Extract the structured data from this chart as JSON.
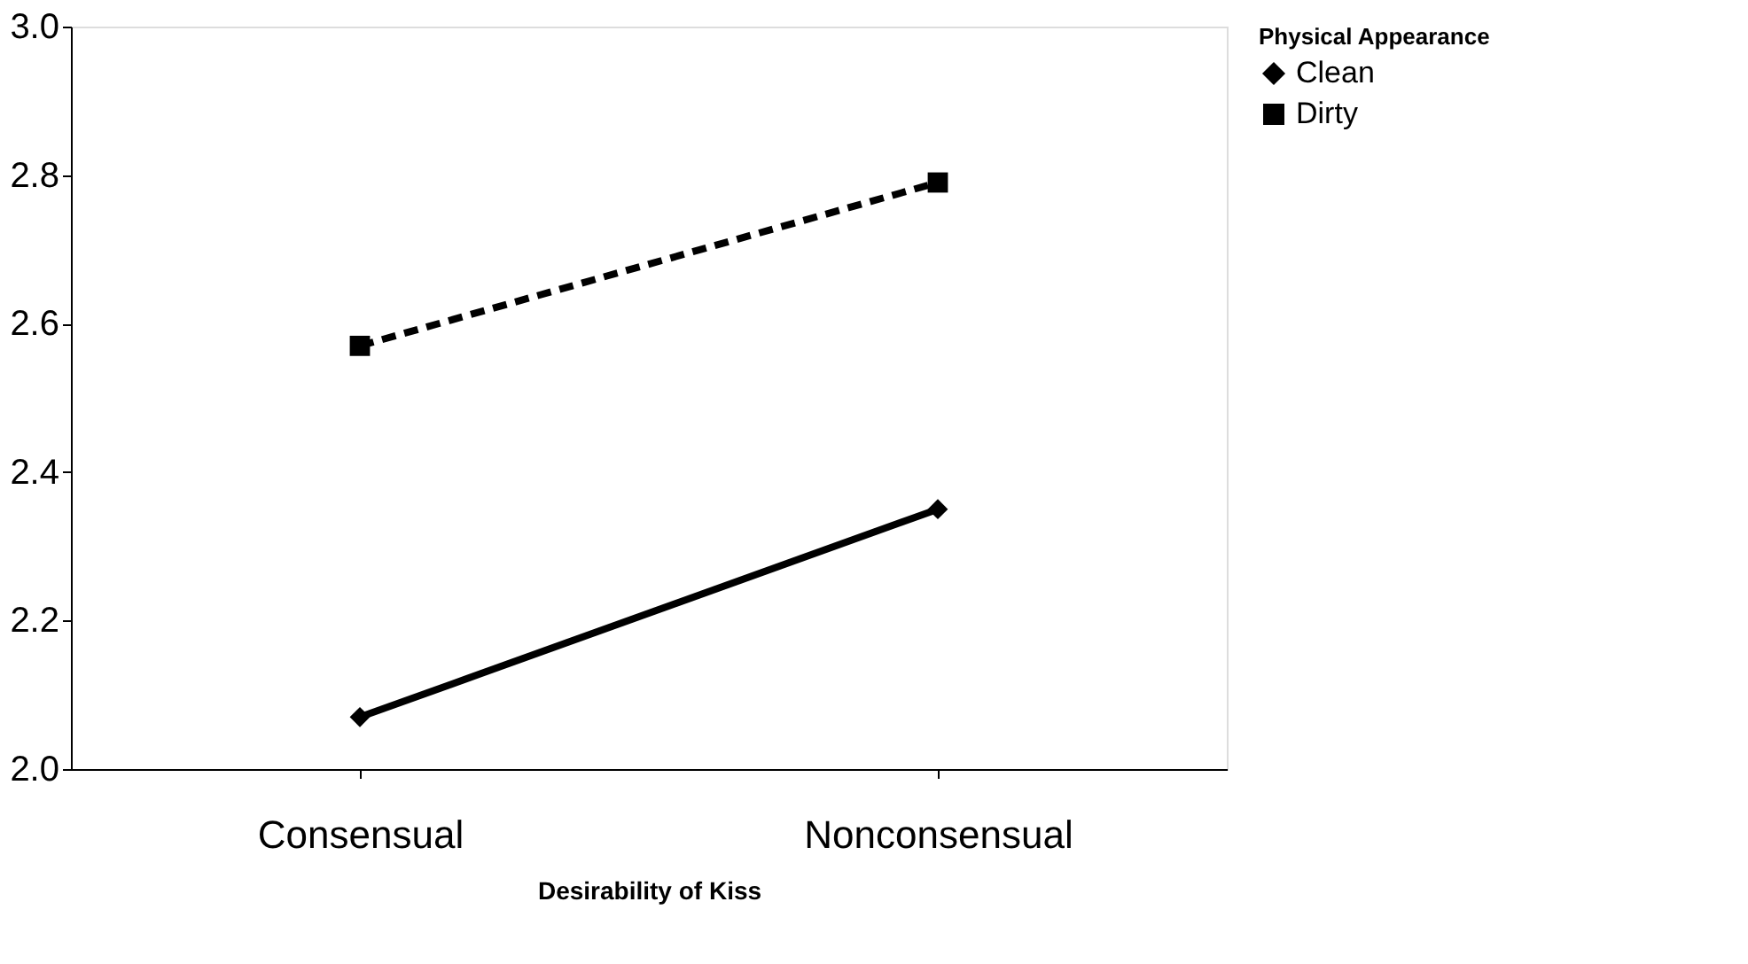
{
  "chart_data": {
    "type": "line",
    "xlabel": "Desirability of Kiss",
    "legend_title": "Physical Appearance",
    "categories": [
      "Consensual",
      "Nonconsensual"
    ],
    "series": [
      {
        "name": "Clean",
        "color": "#000000",
        "values": [
          2.07,
          2.35
        ],
        "marker": "diamond",
        "line_style": "solid"
      },
      {
        "name": "Dirty",
        "color": "#000000",
        "values": [
          2.57,
          2.79
        ],
        "marker": "square",
        "line_style": "dashed"
      }
    ],
    "ylim": [
      2.0,
      3.0
    ],
    "yticks": [
      {
        "value": 2,
        "label": "2.0"
      },
      2.2,
      2.4,
      2.6,
      2.8,
      {
        "value": 3,
        "label": "3.0"
      }
    ],
    "grid": false,
    "legend": "right"
  }
}
